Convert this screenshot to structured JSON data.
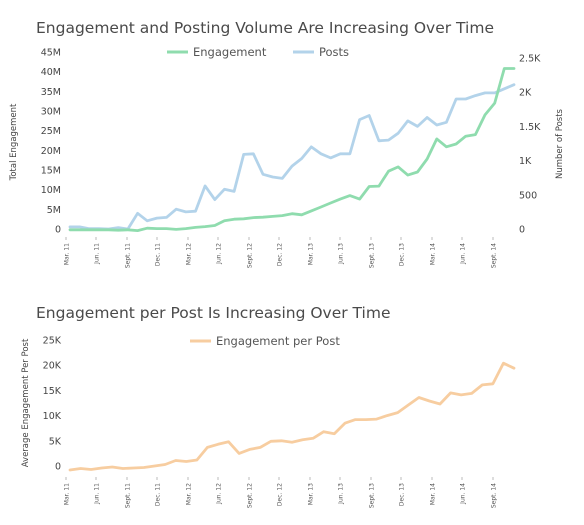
{
  "chart_data": [
    {
      "type": "line",
      "title": "Engagement and Posting Volume Are Increasing Over Time",
      "ylabel": "Total Engagement",
      "y2label": "Number of Posts",
      "xlabel": "",
      "ylim": [
        0,
        45000000
      ],
      "y2lim": [
        -65,
        2500
      ],
      "yticks": [
        "0",
        "5M",
        "10M",
        "15M",
        "20M",
        "25M",
        "30M",
        "35M",
        "40M",
        "45M"
      ],
      "y2ticks": [
        "0",
        "500",
        "1K",
        "1.5K",
        "2K",
        "2.5K"
      ],
      "xticklabels": [
        "Mar. 11",
        "Jun. 11",
        "Sept. 11",
        "Dec. 11",
        "Mar. 12",
        "Jun. 12",
        "Sept. 12",
        "Dec. 12",
        "Mar. 13",
        "Jun. 13",
        "Sept. 13",
        "Dec. 13",
        "Mar. 14",
        "Jun. 14",
        "Sept. 14"
      ],
      "legend_position": "top-center",
      "series": [
        {
          "name": "Engagement",
          "axis": "left",
          "color": "#8fdcae",
          "values": [
            -0.2,
            -0.2,
            -0.2,
            -0.2,
            -0.2,
            -0.3,
            -0.2,
            -0.4,
            0.2,
            0.1,
            0.1,
            -0.1,
            0.1,
            0.4,
            0.6,
            0.9,
            2.1,
            2.5,
            2.6,
            2.9,
            3.0,
            3.2,
            3.4,
            3.9,
            3.6,
            4.6,
            5.6,
            6.6,
            7.6,
            8.5,
            7.6,
            10.8,
            10.9,
            14.7,
            15.8,
            13.7,
            14.5,
            17.8,
            22.9,
            20.9,
            21.6,
            23.6,
            24.0,
            29.0,
            32.0,
            40.8,
            40.8
          ]
        },
        {
          "name": "Posts",
          "axis": "right",
          "color": "#b3d3ea",
          "values": [
            30,
            30,
            5,
            5,
            0,
            20,
            0,
            230,
            120,
            160,
            170,
            290,
            250,
            260,
            630,
            430,
            580,
            550,
            1090,
            1100,
            800,
            760,
            740,
            920,
            1030,
            1200,
            1100,
            1040,
            1100,
            1100,
            1600,
            1660,
            1290,
            1300,
            1400,
            1580,
            1500,
            1630,
            1520,
            1560,
            1900,
            1900,
            1950,
            1990,
            1990,
            2050,
            2110
          ]
        }
      ]
    },
    {
      "type": "line",
      "title": "Engagement per Post Is Increasing Over Time",
      "ylabel": "Average Engagement Per Post",
      "xlabel": "",
      "ylim": [
        0,
        25000
      ],
      "yticks": [
        "0",
        "5K",
        "10K",
        "15K",
        "20K",
        "25K"
      ],
      "xticklabels": [
        "Mar. 11",
        "Jun. 11",
        "Sept. 11",
        "Dec. 11",
        "Mar. 12",
        "Jun. 12",
        "Sept. 12",
        "Dec. 12",
        "Mar. 13",
        "Jun. 13",
        "Sept. 13",
        "Dec. 13",
        "Mar. 14",
        "Jun. 14",
        "Sept. 14"
      ],
      "legend_position": "top-center",
      "series": [
        {
          "name": "Engagement per Post",
          "color": "#f7cda0",
          "values": [
            -800,
            -500,
            -700,
            -400,
            -200,
            -500,
            -400,
            -300,
            0,
            300,
            1100,
            900,
            1200,
            3700,
            4300,
            4800,
            2500,
            3300,
            3700,
            4900,
            5000,
            4700,
            5200,
            5500,
            6800,
            6400,
            8500,
            9200,
            9200,
            9300,
            10000,
            10600,
            12100,
            13600,
            12900,
            12300,
            14500,
            14100,
            14400,
            16100,
            16300,
            20400,
            19400
          ]
        }
      ]
    }
  ]
}
